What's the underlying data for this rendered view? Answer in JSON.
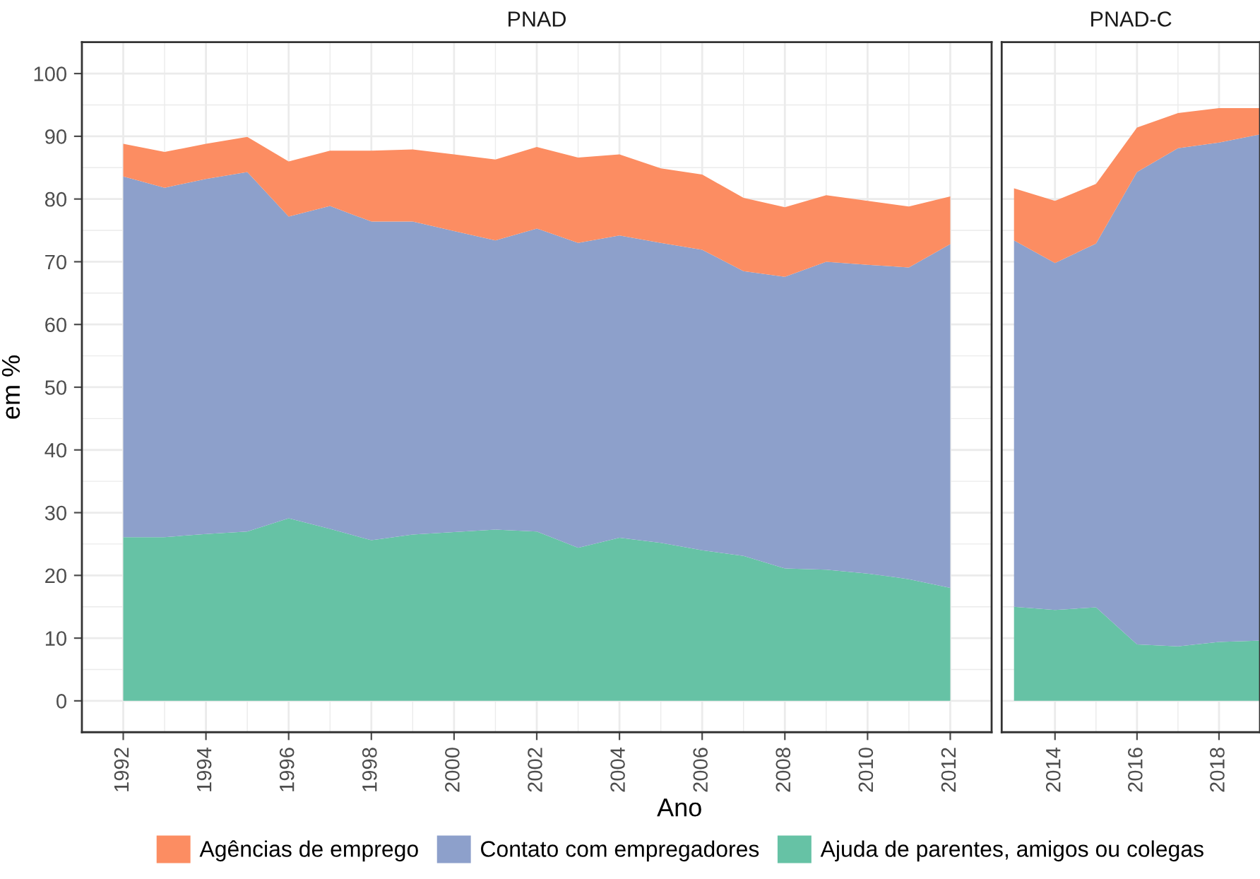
{
  "chart_data": [
    {
      "type": "area",
      "title": "PNAD",
      "xlabel": "Ano",
      "ylabel": "em %",
      "stacked": true,
      "grid": true,
      "legend": "bottom",
      "x": [
        1992,
        1993,
        1994,
        1995,
        1996,
        1997,
        1998,
        1999,
        2000,
        2001,
        2002,
        2003,
        2004,
        2005,
        2006,
        2007,
        2008,
        2009,
        2010,
        2011,
        2012
      ],
      "xlim": [
        1991,
        2013
      ],
      "xticks": [
        1992,
        1994,
        1996,
        1998,
        2000,
        2002,
        2004,
        2006,
        2008,
        2010,
        2012
      ],
      "ylim": [
        -5,
        105
      ],
      "yticks": [
        0,
        10,
        20,
        30,
        40,
        50,
        60,
        70,
        80,
        90,
        100
      ],
      "series": [
        {
          "name": "Ajuda de parentes, amigos ou colegas",
          "color": "#66c2a5",
          "values": [
            26.1,
            26.1,
            26.6,
            27.0,
            29.1,
            27.4,
            25.6,
            26.5,
            26.9,
            27.3,
            27.0,
            24.4,
            26.0,
            25.2,
            24.0,
            23.1,
            21.1,
            20.9,
            20.3,
            19.4,
            18.0
          ]
        },
        {
          "name": "Contato com empregadores",
          "color": "#8da0cb",
          "values": [
            57.5,
            55.7,
            56.6,
            57.3,
            48.1,
            51.5,
            50.8,
            49.9,
            48.0,
            46.1,
            48.3,
            48.6,
            48.2,
            47.8,
            47.9,
            45.4,
            46.5,
            49.1,
            49.2,
            49.7,
            54.8
          ]
        },
        {
          "name": "Agências de emprego",
          "color": "#fc8d62",
          "values": [
            5.2,
            5.7,
            5.6,
            5.6,
            8.8,
            8.8,
            11.3,
            11.5,
            12.2,
            12.9,
            13.0,
            13.6,
            12.9,
            11.9,
            12.0,
            11.7,
            11.1,
            10.6,
            10.2,
            9.7,
            7.6
          ]
        }
      ]
    },
    {
      "type": "area",
      "title": "PNAD-C",
      "stacked": true,
      "grid": true,
      "tick_labels": "x",
      "x": [
        2013,
        2014,
        2015,
        2016,
        2017,
        2018,
        2019
      ],
      "xlim": [
        2012.7,
        2019
      ],
      "xticks": [
        2014,
        2016,
        2018
      ],
      "ylim": [
        -5,
        105
      ],
      "yticks": [
        0,
        10,
        20,
        30,
        40,
        50,
        60,
        70,
        80,
        90,
        100
      ],
      "series": [
        {
          "name": "Ajuda de parentes, amigos ou colegas",
          "color": "#66c2a5",
          "values": [
            15.0,
            14.5,
            14.9,
            9.0,
            8.7,
            9.4,
            9.6
          ]
        },
        {
          "name": "Contato com empregadores",
          "color": "#8da0cb",
          "values": [
            58.4,
            55.3,
            58.0,
            75.3,
            79.4,
            79.6,
            80.7
          ]
        },
        {
          "name": "Agências de emprego",
          "color": "#fc8d62",
          "values": [
            8.3,
            9.9,
            9.5,
            7.1,
            5.6,
            5.5,
            4.2
          ]
        }
      ]
    }
  ]
}
